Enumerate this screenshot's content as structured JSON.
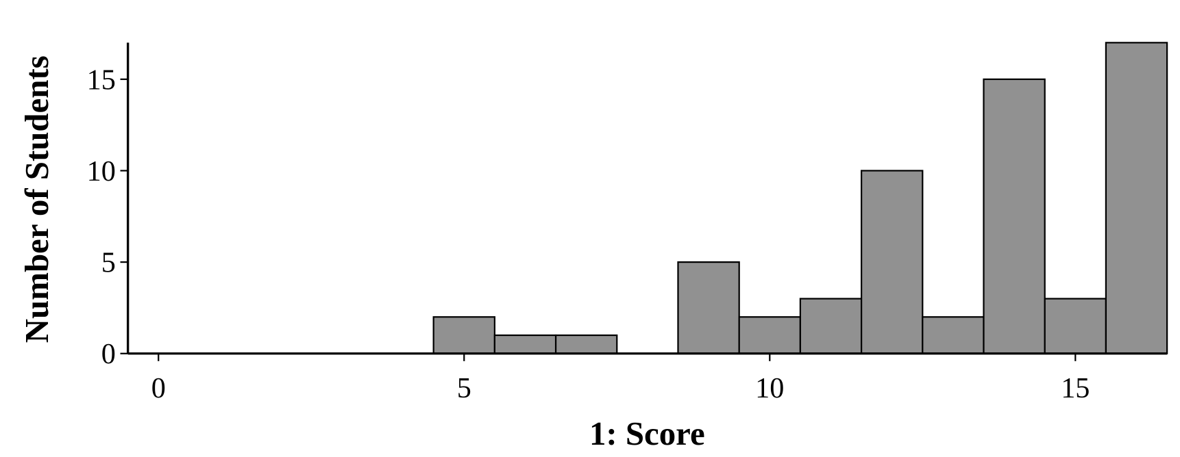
{
  "chart_data": {
    "type": "histogram",
    "x_label": "1: Score",
    "y_label": "Number of Students",
    "bins": [
      -0.5,
      0.5,
      1.5,
      2.5,
      3.5,
      4.5,
      5.5,
      6.5,
      7.5,
      8.5,
      9.5,
      10.5,
      11.5,
      12.5,
      13.5,
      14.5,
      15.5,
      16.5
    ],
    "values": [
      0,
      0,
      0,
      0,
      0,
      2,
      1,
      1,
      0,
      5,
      2,
      3,
      10,
      2,
      15,
      3,
      17
    ],
    "color": "#919191",
    "xlim": [
      -0.5,
      16.5
    ],
    "xticks": [
      0,
      5,
      10,
      15
    ],
    "ylim": [
      0,
      17
    ],
    "yticks": [
      0,
      5,
      10,
      15
    ]
  }
}
